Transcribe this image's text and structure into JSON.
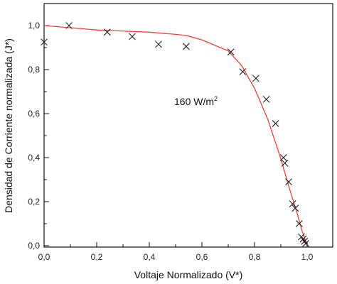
{
  "chart_data": {
    "type": "scatter",
    "xlabel": "Voltaje Normalizado (V*)",
    "ylabel": "Densidad de Corriente normalizada (J*)",
    "xlim": [
      0.0,
      1.0
    ],
    "ylim": [
      0.0,
      1.1
    ],
    "x_ticks": [
      "0,0",
      "0,2",
      "0,4",
      "0,6",
      "0,8",
      "1,0"
    ],
    "x_tick_values": [
      0.0,
      0.2,
      0.4,
      0.6,
      0.8,
      1.0
    ],
    "y_ticks": [
      "0,0",
      "0,2",
      "0,4",
      "0,6",
      "0,8",
      "1,0"
    ],
    "y_tick_values": [
      0.0,
      0.2,
      0.4,
      0.6,
      0.8,
      1.0
    ],
    "annotation": {
      "text": "160 W/m",
      "sup": "2"
    },
    "grid": false,
    "series": [
      {
        "type": "scatter",
        "marker": "x",
        "color": "#222222",
        "x": [
          0.0,
          0.095,
          0.24,
          0.335,
          0.435,
          0.54,
          0.71,
          0.755,
          0.805,
          0.845,
          0.88,
          0.91,
          0.915,
          0.93,
          0.945,
          0.955,
          0.97,
          0.978,
          0.985,
          0.99,
          0.995
        ],
        "y": [
          0.925,
          1.0,
          0.97,
          0.95,
          0.915,
          0.905,
          0.88,
          0.79,
          0.76,
          0.665,
          0.555,
          0.4,
          0.375,
          0.29,
          0.19,
          0.17,
          0.1,
          0.04,
          0.03,
          0.02,
          0.01
        ]
      },
      {
        "type": "line",
        "color": "#e8453c",
        "x": [
          0.0,
          0.1,
          0.2,
          0.3,
          0.4,
          0.5,
          0.54,
          0.6,
          0.65,
          0.7,
          0.75,
          0.8,
          0.85,
          0.9,
          0.93,
          0.96,
          0.98,
          1.0
        ],
        "y": [
          1.0,
          0.99,
          0.98,
          0.975,
          0.97,
          0.96,
          0.955,
          0.935,
          0.91,
          0.885,
          0.82,
          0.715,
          0.575,
          0.395,
          0.27,
          0.155,
          0.07,
          0.0
        ]
      }
    ]
  }
}
